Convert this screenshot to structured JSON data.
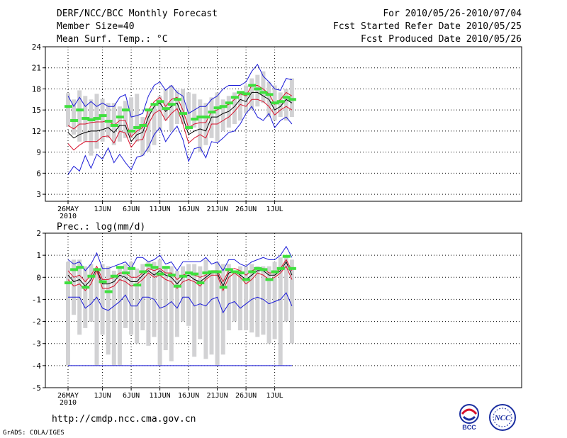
{
  "header": {
    "title": "DERF/NCC/BCC Monthly Forecast",
    "member_size": "Member Size=40",
    "variable": "Mean Surf. Temp.: °C",
    "forecast_period": "For 2010/05/26-2010/07/04",
    "fcst_started": "Fcst Started Refer Date 2010/05/25",
    "fcst_produced": "Fcst Produced Date 2010/05/26"
  },
  "footer": {
    "url": "http://cmdp.ncc.cma.gov.cn",
    "credit": "GrADS: COLA/IGES",
    "logo1_text": "BCC",
    "logo2_text": "NCC"
  },
  "colors": {
    "box": "#d2d2d4",
    "obs": "#3ee03e",
    "mean": "#000000",
    "spread": "#d8102a",
    "extreme": "#1a1ad8",
    "grid": "#000000"
  },
  "chart_data": [
    {
      "type": "box",
      "ylabel": "Mean Surf. Temp.: °C",
      "ylim": [
        2,
        24
      ],
      "yticks": [
        3,
        6,
        9,
        12,
        15,
        18,
        21,
        24
      ],
      "xticks": [
        "26MAY\n2010",
        "1JUN",
        "6JUN",
        "11JUN",
        "16JUN",
        "21JUN",
        "26JUN",
        "1JUL"
      ],
      "days": 40,
      "series": [
        {
          "name": "box_max",
          "values": [
            17.4,
            16.5,
            17.8,
            17.0,
            16.5,
            17.3,
            16.6,
            16.0,
            16.0,
            15.5,
            16.3,
            16.8,
            17.3,
            14.0,
            15.0,
            15.5,
            17.0,
            18.0,
            18.5,
            17.8,
            18.0,
            17.5,
            17.3,
            16.5,
            16.0,
            16.8,
            17.5,
            16.5,
            17.0,
            17.5,
            17.5,
            18.5,
            19.5,
            20.0,
            20.5,
            19.0,
            18.5,
            17.5,
            18.0,
            19.5
          ]
        },
        {
          "name": "box_min",
          "values": [
            12.6,
            11.5,
            10.5,
            10.5,
            8.5,
            9.5,
            10.5,
            11.0,
            10.0,
            10.5,
            11.0,
            11.0,
            10.5,
            8.5,
            9.0,
            10.0,
            12.0,
            13.5,
            12.0,
            13.0,
            13.0,
            12.5,
            12.5,
            9.0,
            10.0,
            11.0,
            10.5,
            12.0,
            12.5,
            13.0,
            13.5,
            14.5,
            15.0,
            15.5,
            16.0,
            14.0,
            13.5,
            14.0,
            13.5,
            14.0
          ]
        },
        {
          "name": "observed",
          "values": [
            15.5,
            13.5,
            15.0,
            13.8,
            13.6,
            13.8,
            14.2,
            13.4,
            12.8,
            14.0,
            15.0,
            12.0,
            12.5,
            12.8,
            15.0,
            15.8,
            16.2,
            15.2,
            15.8,
            16.5,
            14.5,
            12.5,
            13.7,
            14.0,
            14.0,
            14.7,
            15.3,
            15.5,
            16.0,
            16.8,
            17.5,
            17.3,
            18.5,
            18.0,
            17.5,
            17.2,
            16.0,
            16.2,
            16.8,
            16.5
          ]
        },
        {
          "name": "ensemble_mean",
          "values": [
            11.8,
            11.0,
            11.5,
            11.8,
            12.0,
            12.0,
            12.2,
            12.5,
            11.8,
            12.8,
            12.8,
            10.5,
            11.5,
            11.8,
            14.0,
            15.5,
            16.0,
            14.8,
            15.5,
            16.0,
            14.0,
            11.5,
            12.0,
            12.3,
            12.0,
            14.0,
            14.0,
            14.5,
            14.8,
            15.5,
            16.5,
            16.2,
            17.5,
            17.5,
            17.0,
            16.5,
            15.0,
            15.5,
            16.5,
            16.0
          ]
        },
        {
          "name": "upper_sd",
          "values": [
            12.8,
            12.3,
            13.0,
            13.0,
            13.2,
            13.3,
            13.3,
            13.5,
            12.8,
            13.5,
            13.5,
            11.2,
            12.0,
            12.5,
            15.0,
            16.2,
            16.8,
            15.5,
            16.5,
            16.8,
            15.0,
            12.5,
            13.0,
            13.2,
            13.2,
            14.8,
            15.0,
            15.5,
            15.8,
            16.5,
            17.3,
            17.0,
            18.5,
            18.5,
            18.0,
            17.3,
            15.8,
            16.5,
            17.5,
            17.0
          ]
        },
        {
          "name": "lower_sd",
          "values": [
            10.2,
            9.3,
            10.0,
            10.5,
            10.5,
            10.5,
            11.2,
            11.3,
            10.3,
            12.0,
            11.7,
            9.7,
            10.7,
            10.8,
            13.0,
            14.5,
            15.0,
            13.5,
            14.5,
            15.2,
            13.0,
            10.3,
            11.0,
            11.5,
            11.0,
            13.0,
            13.0,
            13.5,
            14.0,
            14.8,
            15.8,
            15.5,
            16.5,
            16.5,
            16.2,
            15.5,
            14.3,
            15.0,
            15.5,
            15.0
          ]
        },
        {
          "name": "max_extreme",
          "values": [
            17.0,
            15.5,
            16.8,
            15.5,
            16.2,
            15.5,
            16.0,
            15.5,
            15.5,
            16.8,
            17.2,
            14.0,
            14.2,
            14.5,
            17.0,
            18.5,
            19.0,
            17.8,
            18.5,
            17.5,
            17.0,
            14.5,
            15.0,
            15.5,
            15.5,
            16.5,
            17.0,
            18.0,
            18.5,
            18.5,
            18.5,
            19.0,
            20.5,
            21.5,
            19.8,
            19.0,
            18.0,
            17.8,
            19.5,
            19.3
          ]
        },
        {
          "name": "min_extreme",
          "values": [
            5.8,
            7.0,
            6.3,
            8.5,
            6.7,
            8.7,
            8.0,
            9.6,
            7.5,
            8.7,
            7.5,
            6.5,
            8.3,
            8.5,
            9.7,
            11.5,
            12.5,
            10.5,
            11.7,
            12.7,
            10.8,
            7.7,
            9.5,
            9.7,
            8.2,
            10.5,
            10.3,
            11.0,
            11.8,
            12.0,
            13.0,
            14.5,
            15.5,
            14.0,
            13.5,
            14.5,
            12.5,
            13.5,
            14.0,
            13.0
          ]
        }
      ]
    },
    {
      "type": "box",
      "ylabel": "Prec.: log(mm/d)",
      "ylim": [
        -5,
        2
      ],
      "yticks": [
        -5,
        -4,
        -3,
        -2,
        -1,
        0,
        1,
        2
      ],
      "xticks": [
        "26MAY\n2010",
        "1JUN",
        "6JUN",
        "11JUN",
        "16JUN",
        "21JUN",
        "26JUN",
        "1JUL"
      ],
      "days": 40,
      "series": [
        {
          "name": "box_max",
          "values": [
            0.7,
            0.8,
            0.8,
            0.5,
            0.6,
            0.4,
            0.6,
            0.5,
            0.3,
            0.5,
            0.6,
            0.7,
            0.4,
            0.6,
            0.7,
            0.7,
            0.8,
            0.5,
            0.5,
            0.3,
            0.5,
            0.6,
            0.6,
            0.5,
            0.8,
            0.3,
            0.7,
            0.6,
            0.6,
            0.3,
            0.5,
            0.5,
            0.6,
            0.5,
            0.5,
            0.5,
            0.7,
            0.9,
            1.0,
            0.8
          ]
        },
        {
          "name": "box_min",
          "values": [
            -4.0,
            -1.7,
            -2.6,
            -2.3,
            -2.0,
            -4.0,
            -2.6,
            -3.5,
            -4.0,
            -4.0,
            -2.3,
            -2.6,
            -3.0,
            -2.4,
            -3.1,
            -2.7,
            -4.0,
            -3.3,
            -3.8,
            -2.7,
            -2.0,
            -2.2,
            -3.6,
            -2.8,
            -3.7,
            -3.5,
            -4.0,
            -3.5,
            -2.4,
            -2.0,
            -2.4,
            -2.4,
            -2.5,
            -2.7,
            -2.6,
            -3.0,
            -2.8,
            -4.0,
            -2.0,
            -3.0
          ]
        },
        {
          "name": "observed",
          "values": [
            -0.25,
            0.35,
            0.45,
            -0.45,
            0.05,
            0.35,
            -0.2,
            -0.65,
            0.05,
            0.45,
            0.2,
            0.4,
            -0.35,
            0.25,
            0.55,
            0.45,
            0.15,
            0.45,
            0.1,
            -0.4,
            0.05,
            0.2,
            0.15,
            -0.25,
            0.2,
            0.25,
            0.25,
            -0.45,
            0.35,
            0.25,
            0.2,
            -0.1,
            0.25,
            0.4,
            0.35,
            -0.1,
            0.25,
            0.4,
            0.95,
            0.4
          ]
        },
        {
          "name": "ensemble_mean",
          "values": [
            0.1,
            -0.2,
            -0.1,
            -0.4,
            -0.1,
            0.4,
            -0.3,
            -0.3,
            -0.2,
            0.1,
            0.0,
            -0.2,
            -0.2,
            0.1,
            0.3,
            0.1,
            0.3,
            0.1,
            0.0,
            -0.3,
            0.0,
            0.1,
            -0.1,
            -0.2,
            0.0,
            0.2,
            0.2,
            -0.4,
            0.2,
            0.3,
            0.1,
            -0.1,
            0.1,
            0.3,
            0.3,
            0.1,
            0.1,
            0.3,
            0.7,
            0.1
          ]
        },
        {
          "name": "upper_sd",
          "values": [
            0.3,
            0.0,
            0.1,
            -0.2,
            0.1,
            0.5,
            -0.1,
            -0.1,
            0.0,
            0.2,
            0.2,
            0.0,
            0.0,
            0.2,
            0.4,
            0.3,
            0.4,
            0.2,
            0.2,
            -0.1,
            0.1,
            0.2,
            0.1,
            0.0,
            0.1,
            0.3,
            0.3,
            -0.2,
            0.3,
            0.4,
            0.3,
            0.1,
            0.3,
            0.4,
            0.4,
            0.2,
            0.2,
            0.4,
            0.8,
            0.3
          ]
        },
        {
          "name": "lower_sd",
          "values": [
            -0.1,
            -0.4,
            -0.3,
            -0.6,
            -0.3,
            0.3,
            -0.5,
            -0.5,
            -0.4,
            -0.1,
            -0.2,
            -0.4,
            -0.3,
            -0.1,
            0.2,
            0.0,
            0.1,
            -0.1,
            -0.2,
            -0.5,
            -0.2,
            -0.1,
            -0.2,
            -0.4,
            -0.1,
            0.1,
            0.1,
            -0.6,
            0.0,
            0.2,
            0.0,
            -0.3,
            -0.1,
            0.2,
            0.1,
            -0.1,
            0.0,
            0.2,
            0.5,
            -0.1
          ]
        },
        {
          "name": "max_extreme",
          "values": [
            0.8,
            0.6,
            0.7,
            0.3,
            0.6,
            1.1,
            0.4,
            0.4,
            0.5,
            0.6,
            0.7,
            0.4,
            0.9,
            0.9,
            0.7,
            0.8,
            1.0,
            0.6,
            0.7,
            0.3,
            0.7,
            0.7,
            0.7,
            0.7,
            0.9,
            0.6,
            0.7,
            0.3,
            0.8,
            0.8,
            0.6,
            0.5,
            0.7,
            0.8,
            0.9,
            0.8,
            0.8,
            1.0,
            1.4,
            0.9
          ]
        },
        {
          "name": "min_extreme",
          "values": [
            -0.9,
            -0.9,
            -0.9,
            -1.4,
            -1.2,
            -0.9,
            -1.4,
            -1.5,
            -1.3,
            -1.1,
            -0.8,
            -1.3,
            -1.3,
            -0.9,
            -0.9,
            -1.0,
            -1.4,
            -1.3,
            -1.1,
            -1.4,
            -0.9,
            -0.9,
            -1.3,
            -1.2,
            -1.3,
            -1.0,
            -0.9,
            -1.6,
            -1.2,
            -1.1,
            -1.4,
            -1.2,
            -1.0,
            -0.9,
            -1.0,
            -1.2,
            -1.1,
            -1.0,
            -0.7,
            -1.3
          ]
        },
        {
          "name": "floor",
          "values": [
            -4.0,
            -4.0
          ]
        }
      ]
    }
  ]
}
